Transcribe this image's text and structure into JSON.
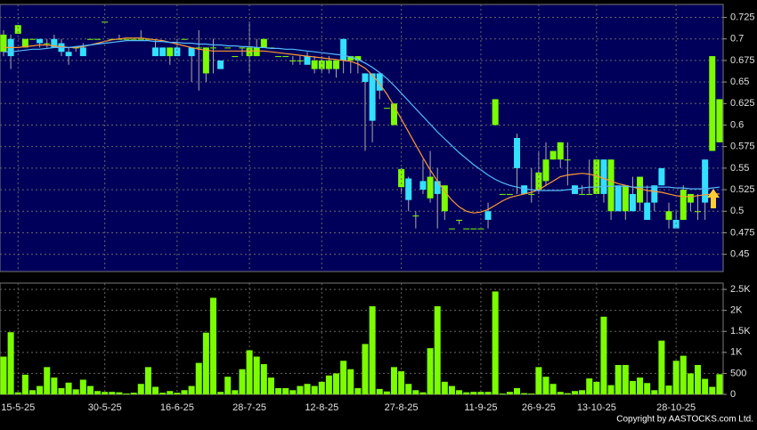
{
  "chart_data": [
    {
      "type": "candlestick",
      "grid": true,
      "up_color": "#7cfc00",
      "down_color": "#33e0ff",
      "open": [
        0.685,
        0.7,
        0.706,
        0.69,
        0.7,
        0.7,
        0.695,
        0.7,
        0.695,
        0.685,
        0.69,
        0.69,
        0.7,
        0.7,
        0.72,
        0.7,
        0.7,
        0.7,
        0.7,
        0.7,
        0.7,
        0.69,
        0.69,
        0.68,
        0.69,
        0.7,
        0.69,
        0.69,
        0.66,
        0.69,
        0.675,
        0.69,
        0.68,
        0.69,
        0.68,
        0.68,
        0.69,
        0.69,
        0.68,
        0.68,
        0.675,
        0.675,
        0.68,
        0.665,
        0.665,
        0.665,
        0.665,
        0.7,
        0.675,
        0.675,
        0.66,
        0.66,
        0.66,
        0.62,
        0.6,
        0.528,
        0.538,
        0.495,
        0.535,
        0.515,
        0.535,
        0.5,
        0.48,
        0.49,
        0.48,
        0.48,
        0.48,
        0.5,
        0.6,
        0.52,
        0.52,
        0.585,
        0.53,
        0.52,
        0.525,
        0.535,
        0.56,
        0.56,
        0.56,
        0.53,
        0.52,
        0.52,
        0.52,
        0.56,
        0.5,
        0.53,
        0.5,
        0.52,
        0.51,
        0.51,
        0.53,
        0.55,
        0.49,
        0.49,
        0.49,
        0.51,
        0.5,
        0.56,
        0.57,
        0.58
      ],
      "high": [
        0.71,
        0.705,
        0.716,
        0.7,
        0.7,
        0.7,
        0.7,
        0.705,
        0.7,
        0.69,
        0.69,
        0.695,
        0.7,
        0.7,
        0.72,
        0.7,
        0.705,
        0.7,
        0.7,
        0.71,
        0.7,
        0.7,
        0.69,
        0.69,
        0.7,
        0.7,
        0.69,
        0.71,
        0.69,
        0.7,
        0.675,
        0.69,
        0.68,
        0.69,
        0.72,
        0.7,
        0.7,
        0.69,
        0.68,
        0.68,
        0.68,
        0.68,
        0.685,
        0.68,
        0.68,
        0.68,
        0.675,
        0.7,
        0.68,
        0.68,
        0.66,
        0.66,
        0.66,
        0.62,
        0.625,
        0.55,
        0.54,
        0.5,
        0.56,
        0.57,
        0.55,
        0.53,
        0.48,
        0.49,
        0.48,
        0.48,
        0.48,
        0.51,
        0.63,
        0.52,
        0.52,
        0.59,
        0.53,
        0.55,
        0.57,
        0.58,
        0.57,
        0.58,
        0.58,
        0.53,
        0.53,
        0.56,
        0.56,
        0.56,
        0.56,
        0.53,
        0.53,
        0.54,
        0.54,
        0.53,
        0.53,
        0.55,
        0.51,
        0.5,
        0.53,
        0.52,
        0.52,
        0.56,
        0.68,
        0.63
      ],
      "low": [
        0.68,
        0.665,
        0.706,
        0.69,
        0.7,
        0.69,
        0.69,
        0.69,
        0.68,
        0.67,
        0.685,
        0.68,
        0.7,
        0.7,
        0.72,
        0.7,
        0.7,
        0.7,
        0.7,
        0.7,
        0.7,
        0.68,
        0.68,
        0.67,
        0.68,
        0.7,
        0.65,
        0.64,
        0.65,
        0.66,
        0.665,
        0.69,
        0.68,
        0.68,
        0.66,
        0.68,
        0.69,
        0.69,
        0.68,
        0.68,
        0.67,
        0.67,
        0.67,
        0.66,
        0.66,
        0.66,
        0.655,
        0.66,
        0.66,
        0.66,
        0.57,
        0.58,
        0.63,
        0.62,
        0.6,
        0.52,
        0.5,
        0.48,
        0.52,
        0.51,
        0.48,
        0.49,
        0.48,
        0.485,
        0.48,
        0.48,
        0.48,
        0.48,
        0.6,
        0.52,
        0.52,
        0.52,
        0.52,
        0.51,
        0.52,
        0.53,
        0.56,
        0.55,
        0.53,
        0.52,
        0.52,
        0.52,
        0.52,
        0.51,
        0.49,
        0.5,
        0.49,
        0.5,
        0.5,
        0.49,
        0.5,
        0.53,
        0.48,
        0.48,
        0.49,
        0.5,
        0.49,
        0.49,
        0.57,
        0.58
      ],
      "close": [
        0.705,
        0.68,
        0.716,
        0.7,
        0.7,
        0.695,
        0.695,
        0.69,
        0.685,
        0.68,
        0.69,
        0.68,
        0.7,
        0.7,
        0.72,
        0.7,
        0.7,
        0.7,
        0.7,
        0.7,
        0.7,
        0.68,
        0.68,
        0.69,
        0.68,
        0.7,
        0.68,
        0.69,
        0.69,
        0.69,
        0.665,
        0.69,
        0.68,
        0.69,
        0.69,
        0.69,
        0.7,
        0.69,
        0.68,
        0.68,
        0.675,
        0.675,
        0.67,
        0.675,
        0.675,
        0.675,
        0.675,
        0.675,
        0.68,
        0.68,
        0.65,
        0.605,
        0.64,
        0.62,
        0.625,
        0.549,
        0.513,
        0.495,
        0.525,
        0.54,
        0.52,
        0.53,
        0.48,
        0.49,
        0.48,
        0.48,
        0.48,
        0.49,
        0.63,
        0.52,
        0.52,
        0.55,
        0.52,
        0.52,
        0.545,
        0.56,
        0.57,
        0.58,
        0.56,
        0.52,
        0.52,
        0.52,
        0.56,
        0.52,
        0.56,
        0.5,
        0.53,
        0.5,
        0.54,
        0.49,
        0.51,
        0.53,
        0.5,
        0.48,
        0.525,
        0.52,
        0.5,
        0.51,
        0.68,
        0.63
      ],
      "series": [
        {
          "color": "#ff9933",
          "values": [
            0.69,
            0.69,
            0.69,
            0.691,
            0.692,
            0.693,
            0.693,
            0.692,
            0.691,
            0.69,
            0.69,
            0.691,
            0.693,
            0.695,
            0.697,
            0.699,
            0.7,
            0.701,
            0.701,
            0.701,
            0.7,
            0.699,
            0.698,
            0.696,
            0.694,
            0.692,
            0.69,
            0.688,
            0.687,
            0.686,
            0.686,
            0.686,
            0.686,
            0.686,
            0.686,
            0.686,
            0.686,
            0.685,
            0.684,
            0.683,
            0.682,
            0.681,
            0.68,
            0.679,
            0.678,
            0.677,
            0.676,
            0.675,
            0.674,
            0.671,
            0.666,
            0.658,
            0.648,
            0.636,
            0.622,
            0.607,
            0.592,
            0.577,
            0.562,
            0.548,
            0.535,
            0.523,
            0.513,
            0.505,
            0.5,
            0.498,
            0.499,
            0.502,
            0.507,
            0.512,
            0.516,
            0.518,
            0.52,
            0.522,
            0.525,
            0.53,
            0.535,
            0.54,
            0.542,
            0.543,
            0.544,
            0.543,
            0.541,
            0.538,
            0.535,
            0.532,
            0.53,
            0.528,
            0.526,
            0.524,
            0.523,
            0.522,
            0.52,
            0.518,
            0.517,
            0.517,
            0.518,
            0.519,
            0.52,
            0.52
          ]
        },
        {
          "color": "#55bbff",
          "values": [
            0.685,
            0.685,
            0.686,
            0.687,
            0.688,
            0.688,
            0.689,
            0.69,
            0.69,
            0.69,
            0.691,
            0.692,
            0.693,
            0.694,
            0.695,
            0.696,
            0.697,
            0.698,
            0.698,
            0.698,
            0.698,
            0.697,
            0.697,
            0.696,
            0.696,
            0.695,
            0.695,
            0.694,
            0.694,
            0.693,
            0.693,
            0.692,
            0.692,
            0.691,
            0.691,
            0.69,
            0.69,
            0.689,
            0.689,
            0.688,
            0.688,
            0.687,
            0.686,
            0.685,
            0.684,
            0.683,
            0.682,
            0.681,
            0.679,
            0.676,
            0.672,
            0.667,
            0.661,
            0.654,
            0.646,
            0.637,
            0.628,
            0.619,
            0.61,
            0.601,
            0.592,
            0.584,
            0.576,
            0.568,
            0.561,
            0.554,
            0.548,
            0.542,
            0.537,
            0.533,
            0.53,
            0.528,
            0.526,
            0.525,
            0.524,
            0.524,
            0.524,
            0.524,
            0.525,
            0.526,
            0.527,
            0.528,
            0.528,
            0.529,
            0.529,
            0.529,
            0.529,
            0.528,
            0.528,
            0.528,
            0.528,
            0.528,
            0.528,
            0.527,
            0.527,
            0.526,
            0.526,
            0.526,
            0.527,
            0.528
          ]
        }
      ],
      "ylim": [
        0.43,
        0.74
      ],
      "yticks": [
        0.725,
        0.7,
        0.675,
        0.65,
        0.625,
        0.6,
        0.575,
        0.55,
        0.525,
        0.5,
        0.475,
        0.45
      ]
    },
    {
      "type": "bar",
      "grid": true,
      "color": "#7cfc00",
      "categories": [
        null,
        null,
        "15-5-25",
        null,
        null,
        null,
        null,
        null,
        null,
        null,
        null,
        null,
        null,
        null,
        "30-5-25",
        null,
        null,
        null,
        null,
        null,
        null,
        null,
        null,
        null,
        "16-6-25",
        null,
        null,
        null,
        null,
        null,
        null,
        null,
        null,
        null,
        "28-7-25",
        null,
        null,
        null,
        null,
        null,
        null,
        null,
        null,
        null,
        "12-8-25",
        null,
        null,
        null,
        null,
        null,
        null,
        null,
        null,
        null,
        null,
        "27-8-25",
        null,
        null,
        null,
        null,
        null,
        null,
        null,
        null,
        null,
        null,
        "11-9-25",
        null,
        null,
        null,
        null,
        null,
        null,
        null,
        "26-9-25",
        null,
        null,
        null,
        null,
        null,
        null,
        null,
        "13-10-25",
        null,
        null,
        null,
        null,
        null,
        null,
        null,
        null,
        null,
        null,
        "28-10-25",
        null,
        null,
        null,
        null,
        null,
        null
      ],
      "values": [
        900,
        1480,
        50,
        470,
        100,
        200,
        650,
        400,
        150,
        280,
        120,
        350,
        200,
        80,
        60,
        60,
        50,
        20,
        40,
        250,
        650,
        180,
        40,
        80,
        40,
        100,
        200,
        750,
        1470,
        2300,
        60,
        420,
        100,
        600,
        1050,
        900,
        720,
        400,
        150,
        150,
        100,
        200,
        250,
        200,
        300,
        450,
        500,
        800,
        600,
        150,
        1200,
        2100,
        130,
        70,
        650,
        550,
        250,
        100,
        50,
        1100,
        2100,
        300,
        200,
        100,
        50,
        60,
        60,
        60,
        2450,
        20,
        60,
        150,
        30,
        20,
        650,
        420,
        250,
        60,
        30,
        80,
        100,
        380,
        300,
        1850,
        220,
        700,
        700,
        320,
        400,
        270,
        100,
        1280,
        210,
        800,
        920,
        500,
        700,
        370,
        180,
        480
      ],
      "ylim": [
        0,
        2650
      ],
      "yticks": [
        {
          "value": 2500,
          "label": "2.5K"
        },
        {
          "value": 2000,
          "label": "2K"
        },
        {
          "value": 1500,
          "label": "1.5K"
        },
        {
          "value": 1000,
          "label": "1K"
        },
        500,
        0
      ]
    }
  ],
  "copyright": "Copyright by AASTOCKS.com Ltd."
}
